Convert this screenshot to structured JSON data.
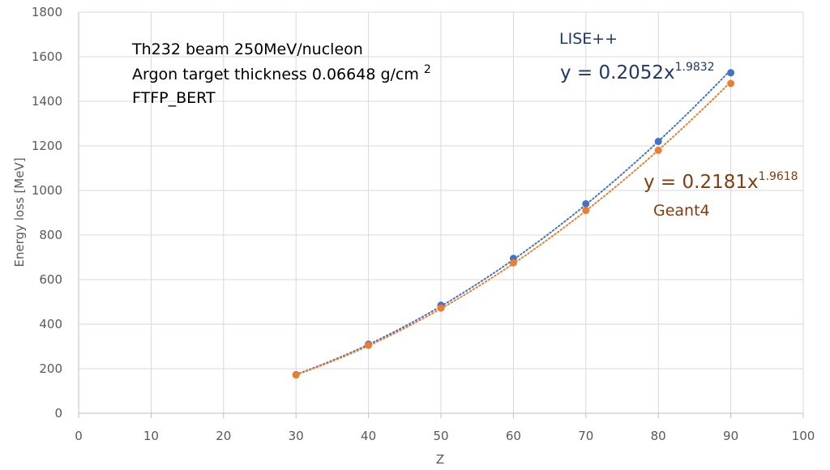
{
  "chart_data": {
    "type": "scatter",
    "xlabel": "Z",
    "ylabel": "Energy loss [MeV]",
    "xlim": [
      0,
      100
    ],
    "ylim": [
      0,
      1800
    ],
    "x_ticks": [
      "0",
      "10",
      "20",
      "30",
      "40",
      "50",
      "60",
      "70",
      "80",
      "90",
      "100"
    ],
    "y_ticks": [
      "0",
      "200",
      "400",
      "600",
      "800",
      "1000",
      "1200",
      "1400",
      "1600",
      "1800"
    ],
    "grid": true,
    "annotations": {
      "line1": "Th232 beam 250MeV/nucleon",
      "line2_main": "Argon target thickness 0.06648 g/cm ",
      "line2_sup": "2",
      "line3": "FTFP_BERT"
    },
    "series": [
      {
        "name": "LISE++",
        "color": "#4472c4",
        "trendline": {
          "type": "power",
          "a": 0.2052,
          "b": 1.9832
        },
        "equation_main": "y = 0.2052x",
        "equation_exp": "1.9832",
        "x": [
          30,
          40,
          50,
          60,
          70,
          80,
          90
        ],
        "y": [
          173,
          310,
          485,
          695,
          940,
          1220,
          1528
        ]
      },
      {
        "name": "Geant4",
        "color": "#ed7d31",
        "trendline": {
          "type": "power",
          "a": 0.2181,
          "b": 1.9618
        },
        "equation_main": "y = 0.2181x",
        "equation_exp": "1.9618",
        "x": [
          30,
          40,
          50,
          60,
          70,
          80,
          90
        ],
        "y": [
          172,
          305,
          472,
          675,
          910,
          1180,
          1480
        ]
      }
    ]
  }
}
